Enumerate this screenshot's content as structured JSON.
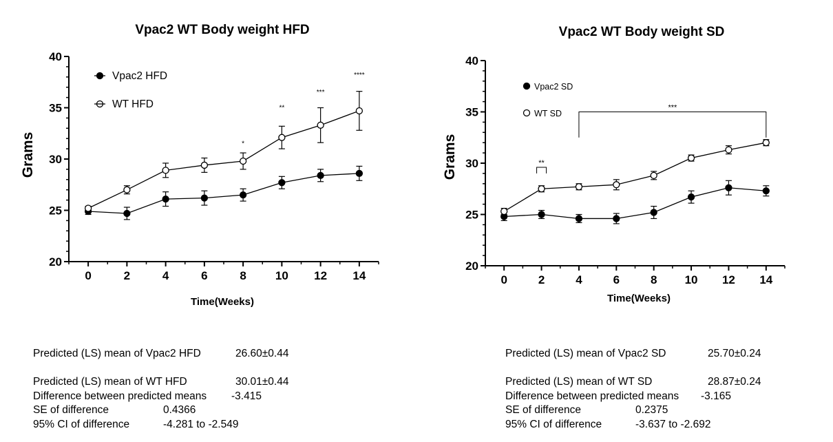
{
  "chart_data": [
    {
      "type": "line",
      "title": "Vpac2 WT Body weight HFD",
      "xlabel": "Time(Weeks)",
      "ylabel": "Grams",
      "x": [
        0,
        2,
        4,
        6,
        8,
        10,
        12,
        14
      ],
      "xlim": [
        -1,
        15
      ],
      "ylim": [
        20,
        40
      ],
      "xticks": [
        "0",
        "2",
        "4",
        "6",
        "8",
        "10",
        "12",
        "14"
      ],
      "yticks": [
        "20",
        "25",
        "30",
        "35",
        "40"
      ],
      "legend_position": "top-left",
      "series": [
        {
          "name": "Vpac2 HFD",
          "marker": "filled-circle",
          "values": [
            24.9,
            24.7,
            26.1,
            26.2,
            26.5,
            27.7,
            28.4,
            28.6
          ],
          "errors": [
            0.3,
            0.6,
            0.7,
            0.7,
            0.6,
            0.6,
            0.6,
            0.7
          ]
        },
        {
          "name": "WT HFD",
          "marker": "open-circle",
          "values": [
            25.2,
            27.0,
            28.9,
            29.4,
            29.8,
            32.1,
            33.3,
            34.7
          ],
          "errors": [
            0.2,
            0.4,
            0.7,
            0.7,
            0.8,
            1.1,
            1.7,
            1.9
          ]
        }
      ],
      "annotations": [
        {
          "x": 8,
          "y": 31.3,
          "text": "*"
        },
        {
          "x": 10,
          "y": 34.8,
          "text": "**"
        },
        {
          "x": 12,
          "y": 36.3,
          "text": "***"
        },
        {
          "x": 14,
          "y": 38.0,
          "text": "****"
        }
      ]
    },
    {
      "type": "line",
      "title": "Vpac2 WT Body weight SD",
      "xlabel": "Time(Weeks)",
      "ylabel": "Grams",
      "x": [
        0,
        2,
        4,
        6,
        8,
        10,
        12,
        14
      ],
      "xlim": [
        -1,
        15
      ],
      "ylim": [
        20,
        40
      ],
      "xticks": [
        "0",
        "2",
        "4",
        "6",
        "8",
        "10",
        "12",
        "14"
      ],
      "yticks": [
        "20",
        "25",
        "30",
        "35",
        "40"
      ],
      "legend_position": "top-left",
      "series": [
        {
          "name": "Vpac2 SD",
          "marker": "filled-circle",
          "values": [
            24.8,
            25.0,
            24.6,
            24.6,
            25.2,
            26.7,
            27.6,
            27.3
          ],
          "errors": [
            0.4,
            0.4,
            0.4,
            0.5,
            0.6,
            0.6,
            0.7,
            0.5
          ]
        },
        {
          "name": "WT SD",
          "marker": "open-circle",
          "values": [
            25.3,
            27.5,
            27.7,
            27.9,
            28.8,
            30.5,
            31.3,
            32.0
          ],
          "errors": [
            0.3,
            0.3,
            0.3,
            0.5,
            0.4,
            0.3,
            0.4,
            0.3
          ]
        }
      ],
      "brackets": [
        {
          "x1": 2,
          "x2": 2,
          "y": 29.6,
          "drop_y": 29.0,
          "text": "**"
        },
        {
          "x1": 4,
          "x2": 14,
          "y": 35.0,
          "drop_y": 32.5,
          "text": "***"
        }
      ]
    }
  ],
  "stats": [
    {
      "rows": [
        {
          "label": "Predicted (LS) mean of Vpac2 HFD",
          "value": "26.60±0.44"
        },
        {
          "label": "",
          "value": ""
        },
        {
          "label": "Predicted (LS) mean of WT HFD",
          "value": "30.01±0.44"
        },
        {
          "label": "Difference between predicted means",
          "value": "-3.415"
        },
        {
          "label": "SE of difference",
          "value": "0.4366"
        },
        {
          "label": "95% CI of difference",
          "value": "-4.281 to -2.549"
        }
      ]
    },
    {
      "rows": [
        {
          "label": "Predicted (LS) mean of Vpac2 SD",
          "value": "25.70±0.24"
        },
        {
          "label": "",
          "value": ""
        },
        {
          "label": "Predicted (LS) mean of WT SD",
          "value": "28.87±0.24"
        },
        {
          "label": "Difference between predicted means",
          "value": "-3.165"
        },
        {
          "label": "SE of difference",
          "value": "0.2375"
        },
        {
          "label": "95% CI of difference",
          "value": "-3.637 to -2.692"
        }
      ]
    }
  ]
}
